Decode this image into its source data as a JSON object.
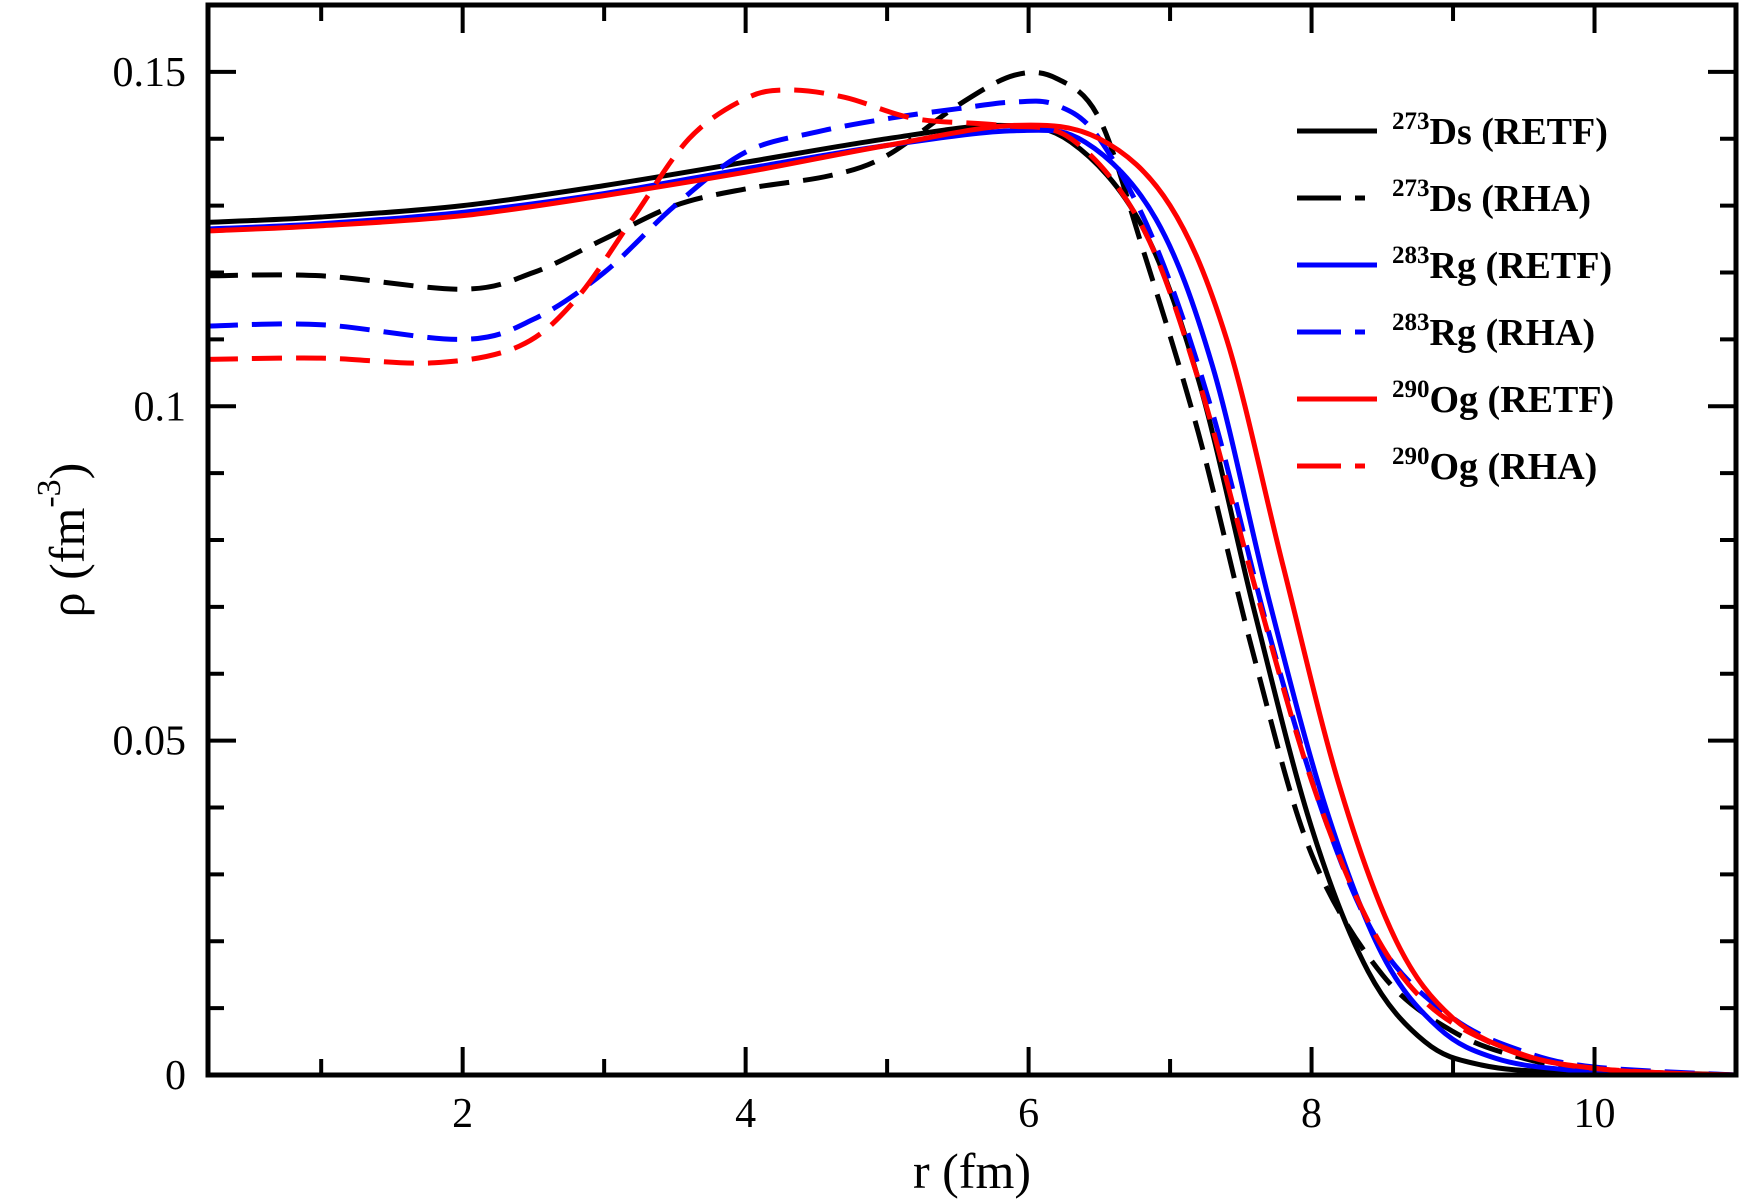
{
  "chart_data": {
    "type": "line",
    "title": "",
    "xlabel": "r (fm)",
    "ylabel_main": "ρ (fm",
    "ylabel_sup": "-3",
    "ylabel_close": ")",
    "xlim": [
      0.2,
      11.0
    ],
    "ylim": [
      0.0,
      0.16
    ],
    "xticks": [
      2,
      4,
      6,
      8,
      10
    ],
    "xtick_labels": [
      "2",
      "4",
      "6",
      "8",
      "10"
    ],
    "xminor": [
      1,
      3,
      5,
      7,
      9
    ],
    "yticks": [
      0,
      0.05,
      0.1,
      0.15
    ],
    "ytick_labels": [
      "0",
      "0.05",
      "0.1",
      "0.15"
    ],
    "yminor": [
      0.01,
      0.02,
      0.03,
      0.04,
      0.06,
      0.07,
      0.08,
      0.09,
      0.11,
      0.12,
      0.13,
      0.14
    ],
    "legend_position": "top-right",
    "series": [
      {
        "name": "Ds (RETF)",
        "sup": "273",
        "color": "#000000",
        "dash": "solid",
        "points": [
          [
            0.2,
            0.1275
          ],
          [
            1,
            0.1283
          ],
          [
            2,
            0.13
          ],
          [
            3,
            0.133
          ],
          [
            4,
            0.1365
          ],
          [
            5,
            0.14
          ],
          [
            5.8,
            0.142
          ],
          [
            6.3,
            0.1395
          ],
          [
            6.8,
            0.127
          ],
          [
            7.2,
            0.104
          ],
          [
            7.6,
            0.069
          ],
          [
            8.0,
            0.037
          ],
          [
            8.4,
            0.0155
          ],
          [
            8.8,
            0.005
          ],
          [
            9.2,
            0.0015
          ],
          [
            9.8,
            0.0004
          ],
          [
            11.0,
            0.0
          ]
        ]
      },
      {
        "name": "Ds (RHA)",
        "sup": "273",
        "color": "#000000",
        "dash": "dashed",
        "points": [
          [
            0.2,
            0.1195
          ],
          [
            1,
            0.1195
          ],
          [
            2,
            0.1175
          ],
          [
            2.5,
            0.12
          ],
          [
            3,
            0.125
          ],
          [
            3.5,
            0.13
          ],
          [
            4,
            0.1325
          ],
          [
            4.6,
            0.1345
          ],
          [
            5.0,
            0.1375
          ],
          [
            5.5,
            0.145
          ],
          [
            5.9,
            0.1495
          ],
          [
            6.2,
            0.149
          ],
          [
            6.5,
            0.143
          ],
          [
            6.8,
            0.124
          ],
          [
            7.2,
            0.096
          ],
          [
            7.6,
            0.062
          ],
          [
            8.0,
            0.033
          ],
          [
            8.5,
            0.015
          ],
          [
            9.0,
            0.0065
          ],
          [
            9.5,
            0.0025
          ],
          [
            10.0,
            0.0008
          ],
          [
            11.0,
            0.0
          ]
        ]
      },
      {
        "name": "Rg (RETF)",
        "sup": "283",
        "color": "#0000ff",
        "dash": "solid",
        "points": [
          [
            0.2,
            0.1265
          ],
          [
            1,
            0.1273
          ],
          [
            2,
            0.129
          ],
          [
            3,
            0.1318
          ],
          [
            4,
            0.1355
          ],
          [
            5,
            0.139
          ],
          [
            5.9,
            0.1412
          ],
          [
            6.4,
            0.1395
          ],
          [
            6.9,
            0.128
          ],
          [
            7.3,
            0.106
          ],
          [
            7.7,
            0.071
          ],
          [
            8.1,
            0.04
          ],
          [
            8.5,
            0.018
          ],
          [
            8.9,
            0.007
          ],
          [
            9.3,
            0.0025
          ],
          [
            9.8,
            0.0008
          ],
          [
            10.5,
            0.0002
          ],
          [
            11.0,
            0.0
          ]
        ]
      },
      {
        "name": "Rg (RHA)",
        "sup": "283",
        "color": "#0000ff",
        "dash": "dashed",
        "points": [
          [
            0.2,
            0.112
          ],
          [
            1,
            0.1122
          ],
          [
            2,
            0.11
          ],
          [
            2.5,
            0.113
          ],
          [
            3,
            0.12
          ],
          [
            3.5,
            0.13
          ],
          [
            4,
            0.138
          ],
          [
            4.5,
            0.141
          ],
          [
            5.0,
            0.143
          ],
          [
            5.5,
            0.1445
          ],
          [
            5.9,
            0.1455
          ],
          [
            6.2,
            0.145
          ],
          [
            6.5,
            0.14
          ],
          [
            6.9,
            0.124
          ],
          [
            7.3,
            0.099
          ],
          [
            7.7,
            0.066
          ],
          [
            8.1,
            0.038
          ],
          [
            8.5,
            0.019
          ],
          [
            9.0,
            0.0085
          ],
          [
            9.5,
            0.0035
          ],
          [
            10.0,
            0.0012
          ],
          [
            11.0,
            0.0
          ]
        ]
      },
      {
        "name": "Og (RETF)",
        "sup": "290",
        "color": "#ff0000",
        "dash": "solid",
        "points": [
          [
            0.2,
            0.1262
          ],
          [
            1,
            0.127
          ],
          [
            2,
            0.1285
          ],
          [
            3,
            0.1315
          ],
          [
            4,
            0.135
          ],
          [
            5,
            0.139
          ],
          [
            5.9,
            0.142
          ],
          [
            6.5,
            0.14
          ],
          [
            7.0,
            0.13
          ],
          [
            7.4,
            0.11
          ],
          [
            7.8,
            0.076
          ],
          [
            8.2,
            0.043
          ],
          [
            8.6,
            0.02
          ],
          [
            9.0,
            0.0085
          ],
          [
            9.5,
            0.003
          ],
          [
            10.0,
            0.001
          ],
          [
            10.5,
            0.0003
          ],
          [
            11.0,
            0.0
          ]
        ]
      },
      {
        "name": "Og (RHA)",
        "sup": "290",
        "color": "#ff0000",
        "dash": "dashed",
        "points": [
          [
            0.2,
            0.107
          ],
          [
            1,
            0.1072
          ],
          [
            1.8,
            0.1065
          ],
          [
            2.4,
            0.109
          ],
          [
            2.8,
            0.116
          ],
          [
            3.2,
            0.128
          ],
          [
            3.6,
            0.14
          ],
          [
            4.0,
            0.146
          ],
          [
            4.3,
            0.1473
          ],
          [
            4.7,
            0.1462
          ],
          [
            5.2,
            0.143
          ],
          [
            5.8,
            0.142
          ],
          [
            6.3,
            0.14
          ],
          [
            6.8,
            0.127
          ],
          [
            7.2,
            0.104
          ],
          [
            7.6,
            0.073
          ],
          [
            8.0,
            0.044
          ],
          [
            8.4,
            0.023
          ],
          [
            8.8,
            0.011
          ],
          [
            9.3,
            0.0045
          ],
          [
            9.8,
            0.0015
          ],
          [
            10.5,
            0.0003
          ],
          [
            11.0,
            0.0
          ]
        ]
      }
    ]
  }
}
